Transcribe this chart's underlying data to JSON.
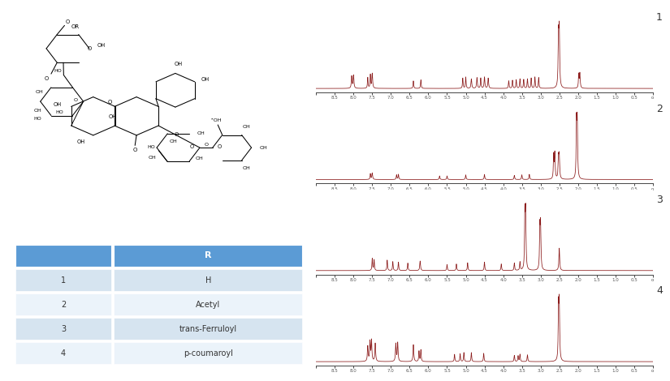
{
  "background_color": "#ffffff",
  "nmr_color": "#8B1A1A",
  "axis_color": "#333333",
  "tick_label_color": "#555555",
  "label_numbers": [
    "1",
    "2",
    "3",
    "4"
  ],
  "label_number_color": "#333333",
  "table_header_color": "#5B9BD5",
  "table_row1_color": "#D6E4F0",
  "table_row2_color": "#EBF3FA",
  "table_data": [
    [
      "1",
      "H"
    ],
    [
      "2",
      "Acetyl"
    ],
    [
      "3",
      "trans-Ferruloyl"
    ],
    [
      "4",
      "p-coumaroyl"
    ]
  ],
  "table_col_header": [
    "",
    "R"
  ]
}
